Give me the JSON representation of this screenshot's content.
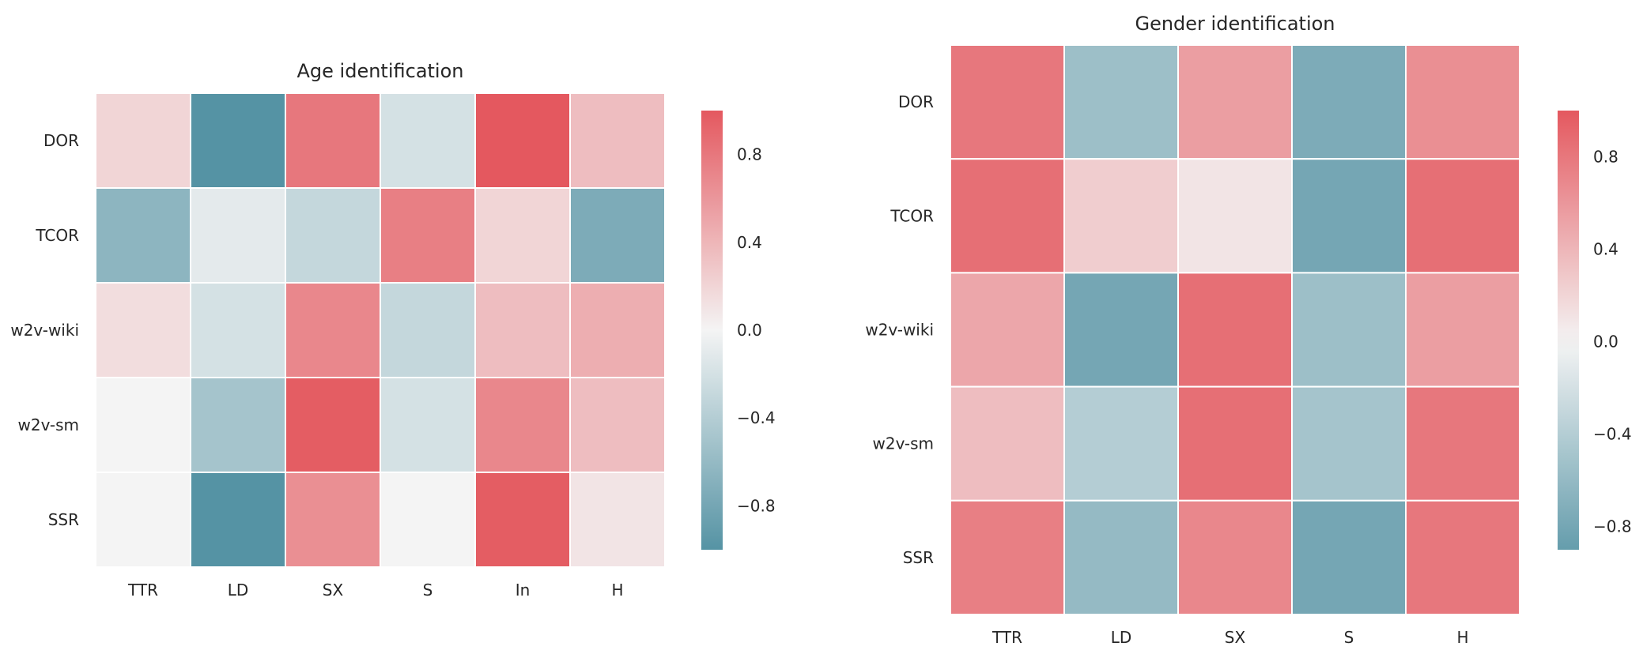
{
  "chart_data": [
    {
      "type": "heatmap",
      "title": "Age identification",
      "rows": [
        "DOR",
        "TCOR",
        "w2v-wiki",
        "w2v-sm",
        "SSR"
      ],
      "columns": [
        "TTR",
        "LD",
        "SX",
        "S",
        "In",
        "H"
      ],
      "values": [
        [
          0.2,
          -1.0,
          0.8,
          -0.2,
          1.0,
          0.35
        ],
        [
          -0.65,
          -0.1,
          -0.3,
          0.75,
          0.2,
          -0.75
        ],
        [
          0.15,
          -0.2,
          0.7,
          -0.3,
          0.35,
          0.45
        ],
        [
          0.0,
          -0.5,
          0.97,
          -0.2,
          0.7,
          0.35
        ],
        [
          0.0,
          -1.0,
          0.65,
          0.0,
          0.97,
          0.1
        ]
      ],
      "colorbar": {
        "vmin": -1.0,
        "vmax": 1.0,
        "ticks": [
          -0.8,
          -0.4,
          0.0,
          0.4,
          0.8
        ],
        "tick_labels": [
          "−0.8",
          "−0.4",
          "0.0",
          "0.4",
          "0.8"
        ]
      },
      "colors": {
        "negative": "#5593a4",
        "neutral": "#f4f4f4",
        "positive": "#e4585f"
      },
      "grid": false
    },
    {
      "type": "heatmap",
      "title": "Gender identification",
      "rows": [
        "DOR",
        "TCOR",
        "w2v-wiki",
        "w2v-sm",
        "SSR"
      ],
      "columns": [
        "TTR",
        "LD",
        "SX",
        "S",
        "H"
      ],
      "values": [
        [
          0.8,
          -0.55,
          0.55,
          -0.75,
          0.65
        ],
        [
          0.85,
          0.25,
          0.1,
          -0.8,
          0.85
        ],
        [
          0.5,
          -0.8,
          0.85,
          -0.55,
          0.55
        ],
        [
          0.35,
          -0.4,
          0.85,
          -0.5,
          0.8
        ],
        [
          0.75,
          -0.6,
          0.7,
          -0.8,
          0.8
        ]
      ],
      "colorbar": {
        "vmin": -0.9,
        "vmax": 1.0,
        "ticks": [
          -0.8,
          -0.4,
          0.0,
          0.4,
          0.8
        ],
        "tick_labels": [
          "−0.8",
          "−0.4",
          "0.0",
          "0.4",
          "0.8"
        ]
      },
      "colors": {
        "negative": "#5593a4",
        "neutral": "#f4f4f4",
        "positive": "#e4585f"
      },
      "grid": false
    }
  ]
}
